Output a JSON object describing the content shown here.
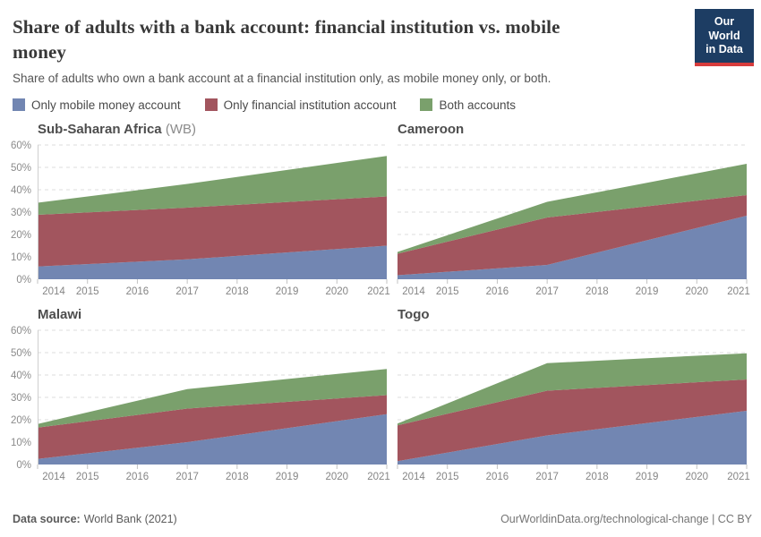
{
  "header": {
    "title": "Share of adults with a bank account: financial institution vs. mobile\nmoney",
    "subtitle": "Share of adults who own a bank account at a financial institution only, as mobile money only, or both.",
    "logo": {
      "line1": "Our World",
      "line2": "in Data",
      "bg_color": "#1d3d63",
      "stripe_color": "#d73c3c"
    }
  },
  "legend": [
    {
      "label": "Only mobile money account",
      "color": "#7286b2"
    },
    {
      "label": "Only financial institution account",
      "color": "#a2555e"
    },
    {
      "label": "Both accounts",
      "color": "#7aa06c"
    }
  ],
  "chart_data": {
    "type": "area",
    "stacked": true,
    "x": [
      2014,
      2017,
      2021
    ],
    "x_ticks": [
      2014,
      2015,
      2016,
      2017,
      2018,
      2019,
      2020,
      2021
    ],
    "ylim": [
      0,
      60
    ],
    "y_ticks": [
      "0%",
      "10%",
      "20%",
      "30%",
      "40%",
      "50%",
      "60%"
    ],
    "grid": "dashed",
    "legend_position": "top",
    "colors": {
      "mobile": "#7286b2",
      "financial": "#a2555e",
      "both": "#7aa06c"
    },
    "charts": [
      {
        "title": "Sub-Saharan Africa",
        "title_suffix": " (WB)",
        "show_y_axis": true,
        "series": [
          {
            "name": "Only mobile money account",
            "color": "#7286b2",
            "values": [
              5.7,
              8.9,
              15.0
            ]
          },
          {
            "name": "Only financial institution account",
            "color": "#a2555e",
            "values": [
              23.1,
              23.1,
              22.0
            ]
          },
          {
            "name": "Both accounts",
            "color": "#7aa06c",
            "values": [
              5.4,
              10.6,
              18.1
            ]
          }
        ]
      },
      {
        "title": "Cameroon",
        "title_suffix": "",
        "show_y_axis": false,
        "series": [
          {
            "name": "Only mobile money account",
            "color": "#7286b2",
            "values": [
              1.8,
              6.4,
              28.4
            ]
          },
          {
            "name": "Only financial institution account",
            "color": "#a2555e",
            "values": [
              9.6,
              21.2,
              9.2
            ]
          },
          {
            "name": "Both accounts",
            "color": "#7aa06c",
            "values": [
              0.8,
              7.0,
              14.0
            ]
          }
        ]
      },
      {
        "title": "Malawi",
        "title_suffix": "",
        "show_y_axis": true,
        "series": [
          {
            "name": "Only mobile money account",
            "color": "#7286b2",
            "values": [
              2.5,
              10.0,
              22.5
            ]
          },
          {
            "name": "Only financial institution account",
            "color": "#a2555e",
            "values": [
              14.0,
              15.0,
              8.5
            ]
          },
          {
            "name": "Both accounts",
            "color": "#7aa06c",
            "values": [
              1.6,
              8.7,
              11.7
            ]
          }
        ]
      },
      {
        "title": "Togo",
        "title_suffix": "",
        "show_y_axis": false,
        "series": [
          {
            "name": "Only mobile money account",
            "color": "#7286b2",
            "values": [
              1.5,
              13.0,
              24.0
            ]
          },
          {
            "name": "Only financial institution account",
            "color": "#a2555e",
            "values": [
              16.0,
              20.0,
              14.0
            ]
          },
          {
            "name": "Both accounts",
            "color": "#7aa06c",
            "values": [
              0.8,
              12.3,
              11.7
            ]
          }
        ]
      }
    ]
  },
  "footer": {
    "data_source_label": "Data source:",
    "data_source_value": "World Bank (2021)",
    "attribution": "OurWorldinData.org/technological-change | CC BY"
  }
}
